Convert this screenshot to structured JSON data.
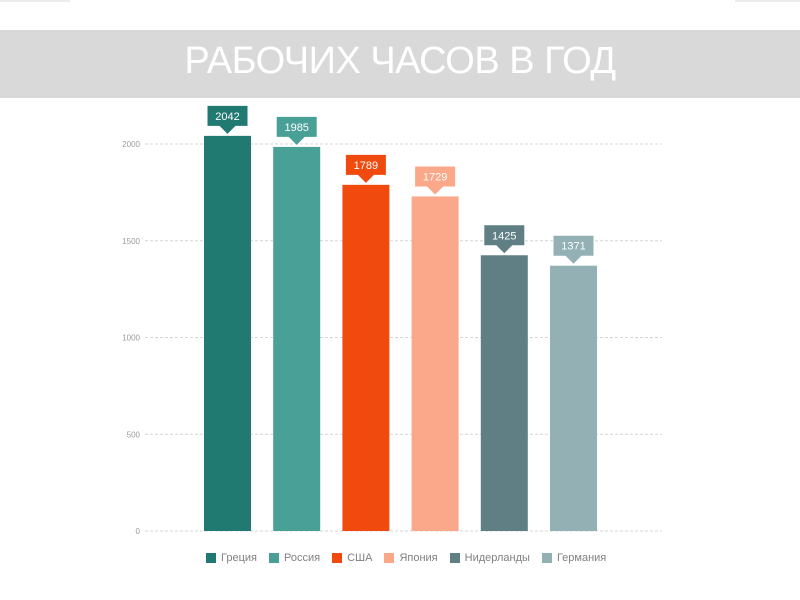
{
  "title": "РАБОЧИХ ЧАСОВ В ГОД",
  "colors": {
    "title_band": "#d9d9d9",
    "grid": "#d6d6d6",
    "axis_text": "#9a9a9a"
  },
  "chart_data": {
    "type": "bar",
    "categories": [
      "Греция",
      "Россия",
      "США",
      "Япония",
      "Нидерланды",
      "Германия"
    ],
    "values": [
      2042,
      1985,
      1789,
      1729,
      1425,
      1371
    ],
    "data_labels": [
      "2042",
      "1985",
      "1789",
      "1729",
      "1425",
      "1371"
    ],
    "colors": [
      "#217a71",
      "#49a096",
      "#f04a0e",
      "#fba789",
      "#5f7f84",
      "#93b0b5"
    ],
    "legend": [
      "Греция",
      "Россия",
      "США",
      "Япония",
      "Нидерланды",
      "Германия"
    ],
    "legend_position": "bottom",
    "ylim": [
      0,
      2000
    ],
    "yticks": [
      0,
      500,
      1000,
      1500,
      2000
    ],
    "ytick_labels": [
      "0",
      "500",
      "1000",
      "1500",
      "2000"
    ],
    "grid": true,
    "xlabel": "",
    "ylabel": ""
  }
}
